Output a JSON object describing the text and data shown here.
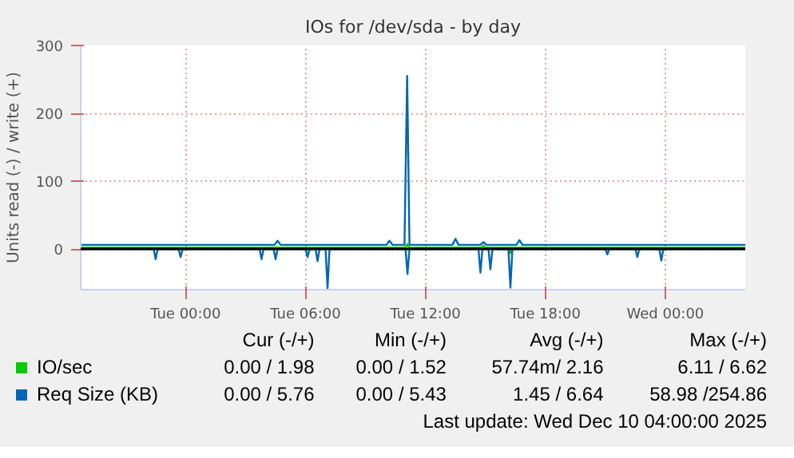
{
  "chart_data": {
    "type": "line",
    "title": "IOs for /dev/sda - by day",
    "ylabel": "Units read (-) / write (+)",
    "xlim": [
      "2025-12-08T18:45",
      "2025-12-10T04:00"
    ],
    "xticks": [
      {
        "value": "2025-12-09T00:00",
        "label": "Tue 00:00"
      },
      {
        "value": "2025-12-09T06:00",
        "label": "Tue 06:00"
      },
      {
        "value": "2025-12-09T12:00",
        "label": "Tue 12:00"
      },
      {
        "value": "2025-12-09T18:00",
        "label": "Tue 18:00"
      },
      {
        "value": "2025-12-10T00:00",
        "label": "Wed 00:00"
      }
    ],
    "ylim": [
      -60,
      300
    ],
    "yticks": [
      0,
      100,
      200,
      300
    ],
    "grid": true,
    "legend": "bottom",
    "ref_lines": [
      {
        "axis": "y",
        "value": 0,
        "color": "#000000"
      }
    ],
    "series": [
      {
        "name": "IO/sec",
        "color": "#00cc00",
        "x": [
          "2025-12-08T18:45",
          "2025-12-09T11:00",
          "2025-12-09T11:05",
          "2025-12-09T11:10",
          "2025-12-09T14:48",
          "2025-12-09T14:54",
          "2025-12-09T15:00",
          "2025-12-10T04:00"
        ],
        "values": [
          2,
          2,
          7,
          2,
          2,
          5,
          2,
          2
        ]
      },
      {
        "color": "#00cc00",
        "x": [
          "2025-12-08T18:45",
          "2025-12-09T16:09",
          "2025-12-09T16:15",
          "2025-12-09T16:21",
          "2025-12-10T04:00"
        ],
        "values": [
          0,
          0,
          -6,
          0,
          0
        ]
      },
      {
        "name": "Req Size (KB)",
        "color": "#0066b3",
        "x": [
          "2025-12-08T18:45",
          "2025-12-09T04:27",
          "2025-12-09T04:36",
          "2025-12-09T04:45",
          "2025-12-09T10:03",
          "2025-12-09T10:12",
          "2025-12-09T10:21",
          "2025-12-09T10:57",
          "2025-12-09T11:05",
          "2025-12-09T11:12",
          "2025-12-09T13:21",
          "2025-12-09T13:30",
          "2025-12-09T13:39",
          "2025-12-09T14:45",
          "2025-12-09T14:54",
          "2025-12-09T15:03",
          "2025-12-09T16:33",
          "2025-12-09T16:42",
          "2025-12-09T16:51",
          "2025-12-10T04:00"
        ],
        "values": [
          6,
          6,
          12,
          6,
          6,
          12,
          6,
          6,
          255,
          6,
          6,
          15,
          6,
          6,
          10,
          6,
          6,
          13,
          6,
          6
        ]
      },
      {
        "color": "#0066b3",
        "x": [
          "2025-12-08T18:45",
          "2025-12-08T22:24",
          "2025-12-08T22:30",
          "2025-12-08T22:36",
          "2025-12-08T23:39",
          "2025-12-08T23:45",
          "2025-12-08T23:51",
          "2025-12-09T03:42",
          "2025-12-09T03:48",
          "2025-12-09T03:54",
          "2025-12-09T04:24",
          "2025-12-09T04:30",
          "2025-12-09T04:36",
          "2025-12-09T06:00",
          "2025-12-09T06:06",
          "2025-12-09T06:12",
          "2025-12-09T06:30",
          "2025-12-09T06:36",
          "2025-12-09T06:42",
          "2025-12-09T07:00",
          "2025-12-09T07:06",
          "2025-12-09T07:12",
          "2025-12-09T11:00",
          "2025-12-09T11:06",
          "2025-12-09T11:12",
          "2025-12-09T14:39",
          "2025-12-09T14:45",
          "2025-12-09T14:51",
          "2025-12-09T15:09",
          "2025-12-09T15:15",
          "2025-12-09T15:21",
          "2025-12-09T16:09",
          "2025-12-09T16:15",
          "2025-12-09T16:21",
          "2025-12-09T21:00",
          "2025-12-09T21:06",
          "2025-12-09T21:12",
          "2025-12-09T22:30",
          "2025-12-09T22:36",
          "2025-12-09T22:42",
          "2025-12-09T23:42",
          "2025-12-09T23:48",
          "2025-12-09T23:54",
          "2025-12-10T04:00"
        ],
        "values": [
          0,
          0,
          -15,
          0,
          0,
          -12,
          0,
          0,
          -15,
          0,
          0,
          -15,
          0,
          0,
          -12,
          0,
          0,
          -18,
          0,
          0,
          -58,
          0,
          0,
          -37,
          0,
          0,
          -35,
          0,
          0,
          -30,
          0,
          0,
          -57,
          0,
          0,
          -8,
          0,
          0,
          -12,
          0,
          0,
          -17,
          0,
          0
        ]
      }
    ],
    "annotations": [
      "Cur (-/+)",
      "Min (-/+)",
      "Avg (-/+)",
      "Max (-/+)",
      "0.00 / 1.98",
      "0.00 / 1.52",
      "57.74m/ 2.16",
      "6.11 / 6.62",
      "0.00 / 5.76",
      "0.00 / 5.43",
      "1.45 / 6.64",
      "58.98 /254.86",
      "Last update: Wed Dec 10 04:00:00 2025"
    ]
  }
}
